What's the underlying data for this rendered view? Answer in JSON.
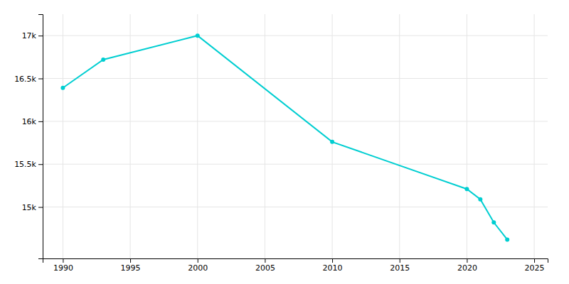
{
  "chart_data": {
    "type": "line",
    "x": [
      1990,
      1993,
      2000,
      2010,
      2020,
      2021,
      2022,
      2023
    ],
    "values": [
      16390,
      16720,
      17000,
      15760,
      15210,
      15090,
      14820,
      14620
    ],
    "color": "#00CED1",
    "marker": "circle",
    "xlim": [
      1988.5,
      2026
    ],
    "ylim": [
      14400,
      17250
    ],
    "xticks": [
      1990,
      1995,
      2000,
      2005,
      2010,
      2015,
      2020,
      2025
    ],
    "yticks": [
      {
        "value": 15000,
        "label": "15k"
      },
      {
        "value": 15500,
        "label": "15.5k"
      },
      {
        "value": 16000,
        "label": "16k"
      },
      {
        "value": 16500,
        "label": "16.5k"
      },
      {
        "value": 17000,
        "label": "17k"
      }
    ],
    "grid": true
  }
}
